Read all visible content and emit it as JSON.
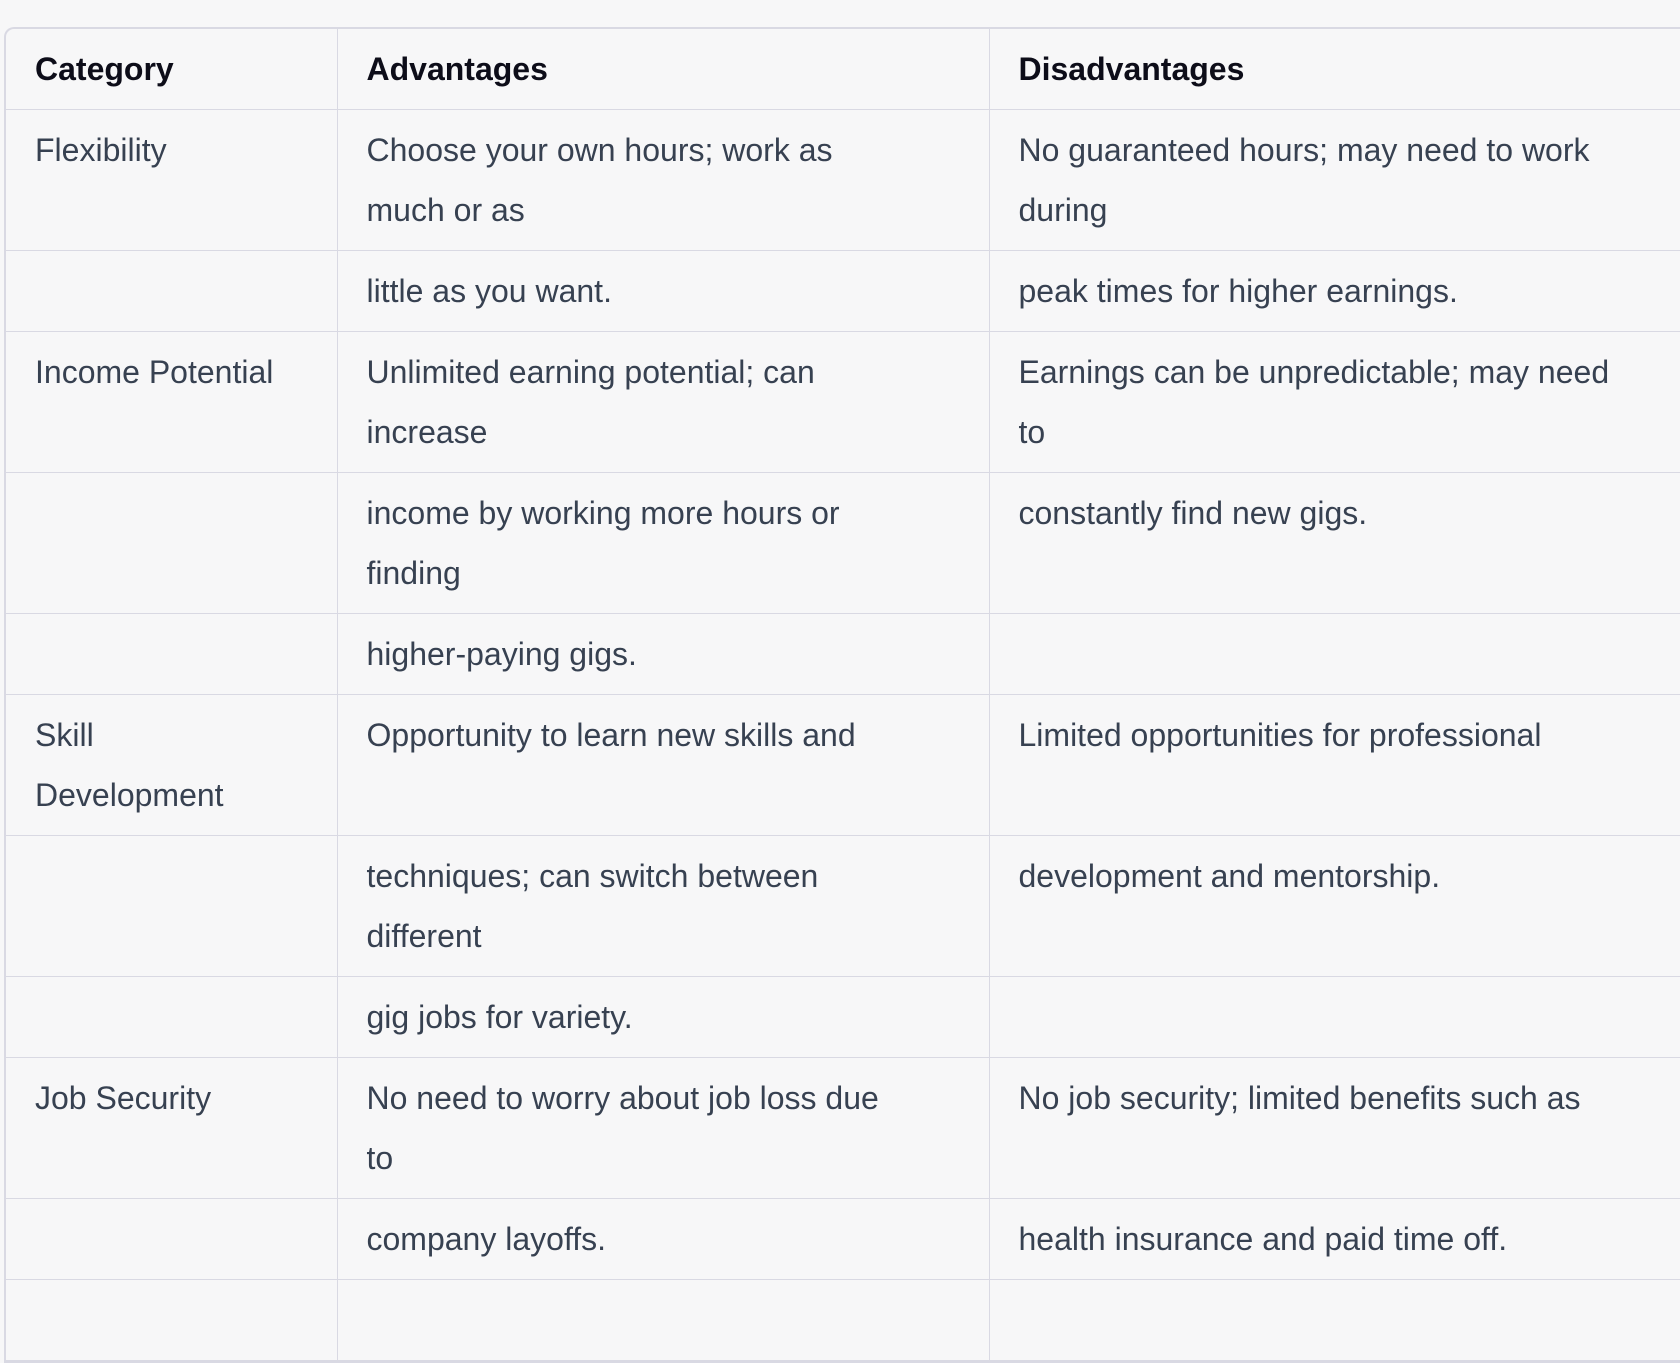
{
  "table": {
    "headers": [
      "Category",
      "Advantages",
      "Disadvantages"
    ],
    "rows": [
      [
        "Flexibility",
        "Choose your own hours; work as\nmuch or as",
        "No guaranteed hours; may need to work\nduring"
      ],
      [
        "",
        "little as you want.",
        "peak times for higher earnings."
      ],
      [
        "Income Potential",
        "Unlimited earning potential; can\nincrease",
        "Earnings can be unpredictable; may need\nto"
      ],
      [
        "",
        "income by working more hours or\nfinding",
        "constantly find new gigs."
      ],
      [
        "",
        "higher-paying gigs.",
        ""
      ],
      [
        "Skill\nDevelopment",
        "Opportunity to learn new skills and",
        "Limited opportunities for professional"
      ],
      [
        "",
        "techniques; can switch between\ndifferent",
        "development and mentorship."
      ],
      [
        "",
        "gig jobs for variety.",
        ""
      ],
      [
        "Job Security",
        "No need to worry about job loss due\nto",
        "No job security; limited benefits such as"
      ],
      [
        "",
        "company layoffs.",
        "health insurance and paid time off."
      ]
    ]
  },
  "colors": {
    "background": "#f7f7f8",
    "border": "#d9d9e3",
    "text": "#374151",
    "header_text": "#0d0d19"
  }
}
